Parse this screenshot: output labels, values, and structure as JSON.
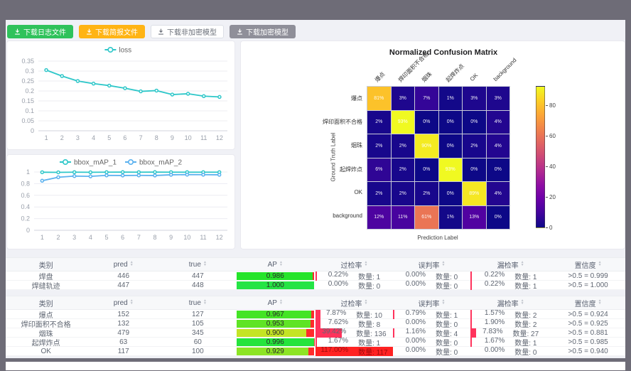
{
  "toolbar": {
    "buttons": [
      {
        "name": "download-log-button",
        "label": "下载日志文件",
        "variant": "green"
      },
      {
        "name": "download-report-button",
        "label": "下载简报文件",
        "variant": "orange"
      },
      {
        "name": "download-plain-model-button",
        "label": "下载非加密模型",
        "variant": "plain"
      },
      {
        "name": "download-encrypted-model-button",
        "label": "下载加密模型",
        "variant": "gray"
      }
    ]
  },
  "chart_data": [
    {
      "type": "line",
      "title": "",
      "legend_position": "top",
      "x": [
        1,
        2,
        3,
        4,
        5,
        6,
        7,
        8,
        9,
        10,
        11,
        12
      ],
      "series": [
        {
          "name": "loss",
          "color": "#2ec7c9",
          "values": [
            0.305,
            0.275,
            0.25,
            0.237,
            0.227,
            0.214,
            0.198,
            0.202,
            0.182,
            0.186,
            0.174,
            0.17
          ]
        }
      ],
      "ylim": [
        0,
        0.35
      ],
      "yticks": [
        0,
        0.05,
        0.1,
        0.15,
        0.2,
        0.25,
        0.3,
        0.35
      ],
      "grid": true
    },
    {
      "type": "line",
      "title": "",
      "legend_position": "top",
      "x": [
        1,
        2,
        3,
        4,
        5,
        6,
        7,
        8,
        9,
        10,
        11,
        12
      ],
      "series": [
        {
          "name": "bbox_mAP_1",
          "color": "#2ec7c9",
          "values": [
            0.996,
            0.994,
            0.997,
            0.995,
            0.997,
            0.998,
            0.997,
            0.998,
            0.997,
            0.997,
            0.997,
            0.997
          ]
        },
        {
          "name": "bbox_mAP_2",
          "color": "#5ab1ef",
          "values": [
            0.85,
            0.91,
            0.93,
            0.925,
            0.942,
            0.94,
            0.942,
            0.94,
            0.952,
            0.955,
            0.954,
            0.952
          ]
        }
      ],
      "ylim": [
        0,
        1
      ],
      "yticks": [
        0,
        0.2,
        0.4,
        0.6,
        0.8,
        1
      ],
      "grid": true
    },
    {
      "type": "heatmap",
      "title": "Normalized Confusion Matrix",
      "xlabel": "Prediction Label",
      "ylabel": "Ground Truth Label",
      "labels": [
        "爆点",
        "焊印面积不合格",
        "烟珠",
        "起焊炸点",
        "OK",
        "background"
      ],
      "matrix": [
        [
          81,
          3,
          7,
          1,
          3,
          3
        ],
        [
          2,
          93,
          0,
          0,
          0,
          4
        ],
        [
          2,
          2,
          90,
          0,
          2,
          4
        ],
        [
          6,
          2,
          0,
          93,
          0,
          0
        ],
        [
          2,
          2,
          2,
          0,
          89,
          4
        ],
        [
          12,
          11,
          61,
          1,
          13,
          0
        ]
      ],
      "unit": "%",
      "vmax": 93,
      "colormap": "plasma",
      "colorbar_ticks": [
        0,
        20,
        40,
        60,
        80
      ]
    }
  ],
  "tables": {
    "columns": [
      {
        "label": "类别",
        "sortable": false
      },
      {
        "label": "pred",
        "sortable": true
      },
      {
        "label": "true",
        "sortable": true
      },
      {
        "label": "AP",
        "sortable": true
      },
      {
        "label": "过检率",
        "sortable": true
      },
      {
        "label": "误判率",
        "sortable": true
      },
      {
        "label": "漏检率",
        "sortable": true
      },
      {
        "label": "置信度",
        "sortable": true
      }
    ],
    "count_label": "数量:",
    "rate_bar_max": 117,
    "groups": [
      {
        "rows": [
          {
            "class": "焊盘",
            "pred": "446",
            "true": "447",
            "ap": "0.986",
            "rates": [
              {
                "pct": "0.22%",
                "count": "1"
              },
              {
                "pct": "0.00%",
                "count": "0"
              },
              {
                "pct": "0.22%",
                "count": "1"
              }
            ],
            "conf": ">0.5 = 0.999"
          },
          {
            "class": "焊缝轨迹",
            "pred": "447",
            "true": "448",
            "ap": "1.000",
            "rates": [
              {
                "pct": "0.00%",
                "count": "0"
              },
              {
                "pct": "0.00%",
                "count": "0"
              },
              {
                "pct": "0.22%",
                "count": "1"
              }
            ],
            "conf": ">0.5 = 1.000"
          }
        ]
      },
      {
        "rows": [
          {
            "class": "爆点",
            "pred": "152",
            "true": "127",
            "ap": "0.967",
            "rates": [
              {
                "pct": "7.87%",
                "count": "10"
              },
              {
                "pct": "0.79%",
                "count": "1"
              },
              {
                "pct": "1.57%",
                "count": "2"
              }
            ],
            "conf": ">0.5 = 0.924"
          },
          {
            "class": "焊印面积不合格",
            "pred": "132",
            "true": "105",
            "ap": "0.953",
            "rates": [
              {
                "pct": "7.62%",
                "count": "8"
              },
              {
                "pct": "0.00%",
                "count": "0"
              },
              {
                "pct": "1.90%",
                "count": "2"
              }
            ],
            "conf": ">0.5 = 0.925"
          },
          {
            "class": "烟珠",
            "pred": "479",
            "true": "345",
            "ap": "0.900",
            "rates": [
              {
                "pct": "39.42%",
                "count": "136"
              },
              {
                "pct": "1.16%",
                "count": "4"
              },
              {
                "pct": "7.83%",
                "count": "27"
              }
            ],
            "conf": ">0.5 = 0.881"
          },
          {
            "class": "起焊炸点",
            "pred": "63",
            "true": "60",
            "ap": "0.996",
            "rates": [
              {
                "pct": "1.67%",
                "count": "1"
              },
              {
                "pct": "0.00%",
                "count": "0"
              },
              {
                "pct": "1.67%",
                "count": "1"
              }
            ],
            "conf": ">0.5 = 0.985"
          },
          {
            "class": "OK",
            "pred": "117",
            "true": "100",
            "ap": "0.929",
            "rates": [
              {
                "pct": "117.00%",
                "count": "117"
              },
              {
                "pct": "0.00%",
                "count": "0"
              },
              {
                "pct": "0.00%",
                "count": "0"
              }
            ],
            "conf": ">0.5 = 0.940"
          }
        ]
      }
    ]
  }
}
